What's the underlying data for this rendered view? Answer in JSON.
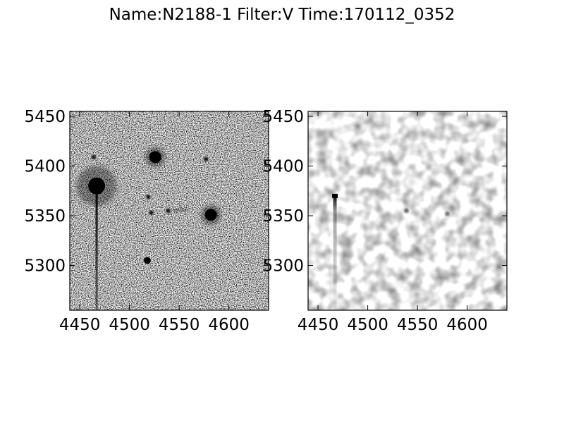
{
  "figure": {
    "title": "Name:N2188-1 Filter:V Time:170112_0352"
  },
  "chart_data": [
    {
      "type": "image",
      "colormap": "gray_r",
      "xlim": [
        4440,
        4640
      ],
      "ylim": [
        5255,
        5455
      ],
      "xticks": [
        4450,
        4500,
        4550,
        4600
      ],
      "yticks": [
        5300,
        5350,
        5400,
        5450
      ],
      "xlabel": "",
      "ylabel": "",
      "sources": [
        {
          "x": 4467,
          "y": 5380,
          "brightness": "saturated"
        },
        {
          "x": 4526,
          "y": 5409,
          "brightness": "bright"
        },
        {
          "x": 4582,
          "y": 5351,
          "brightness": "bright"
        },
        {
          "x": 4518,
          "y": 5305,
          "brightness": "medium"
        },
        {
          "x": 4522,
          "y": 5353,
          "brightness": "faint"
        },
        {
          "x": 4519,
          "y": 5369,
          "brightness": "faint"
        },
        {
          "x": 4577,
          "y": 5407,
          "brightness": "faint"
        },
        {
          "x": 4464,
          "y": 5409,
          "brightness": "faint"
        },
        {
          "x": 4539,
          "y": 5355,
          "brightness": "faint"
        }
      ]
    },
    {
      "type": "image",
      "colormap": "gray_r",
      "xlim": [
        4440,
        4640
      ],
      "ylim": [
        5255,
        5455
      ],
      "xticks": [
        4450,
        4500,
        4550,
        4600
      ],
      "yticks": [
        5300,
        5350,
        5400,
        5450
      ],
      "xlabel": "",
      "ylabel": "",
      "sources": [
        {
          "x": 4467,
          "y": 5370,
          "brightness": "residual"
        },
        {
          "x": 4539,
          "y": 5355,
          "brightness": "faint"
        },
        {
          "x": 4580,
          "y": 5352,
          "brightness": "faint"
        }
      ]
    }
  ]
}
